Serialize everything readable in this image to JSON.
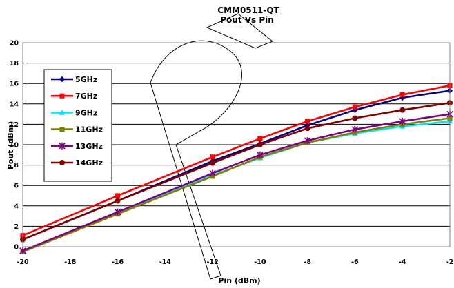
{
  "chart_data": {
    "type": "line",
    "title": "CMM0511-QT",
    "subtitle": "Pout Vs Pin",
    "xlabel": "Pin (dBm)",
    "ylabel": "Pout (dBm)",
    "xlim": [
      -20,
      -2
    ],
    "ylim": [
      0,
      20
    ],
    "x_ticks": [
      -20,
      -18,
      -16,
      -14,
      -12,
      -10,
      -8,
      -6,
      -4,
      -2
    ],
    "y_ticks": [
      0,
      2,
      4,
      6,
      8,
      10,
      12,
      14,
      16,
      18,
      20
    ],
    "grid": "horizontal",
    "legend_position": "left",
    "x": [
      -20,
      -16,
      -12,
      -10,
      -8,
      -6,
      -4,
      -2
    ],
    "series": [
      {
        "name": "5GHz",
        "color": "#000080",
        "marker": "diamond",
        "values": [
          0.7,
          4.5,
          8.4,
          10.1,
          11.9,
          13.4,
          14.6,
          15.3
        ]
      },
      {
        "name": "7GHz",
        "color": "#ff0000",
        "marker": "square",
        "values": [
          1.1,
          5.0,
          8.8,
          10.6,
          12.3,
          13.7,
          14.9,
          15.8
        ]
      },
      {
        "name": "9GHz",
        "color": "#00e5ff",
        "marker": "triangle",
        "values": [
          -0.5,
          3.3,
          7.0,
          8.7,
          10.2,
          11.1,
          11.8,
          12.3
        ]
      },
      {
        "name": "11GHz",
        "color": "#808000",
        "marker": "square",
        "values": [
          -0.5,
          3.2,
          6.9,
          8.8,
          10.2,
          11.2,
          12.0,
          12.6
        ]
      },
      {
        "name": "13GHz",
        "color": "#800080",
        "marker": "star",
        "values": [
          -0.4,
          3.4,
          7.2,
          9.0,
          10.4,
          11.5,
          12.3,
          13.0
        ]
      },
      {
        "name": "14GHz",
        "color": "#800000",
        "marker": "circle",
        "values": [
          0.7,
          4.5,
          8.2,
          10.0,
          11.6,
          12.6,
          13.4,
          14.1
        ]
      }
    ]
  }
}
